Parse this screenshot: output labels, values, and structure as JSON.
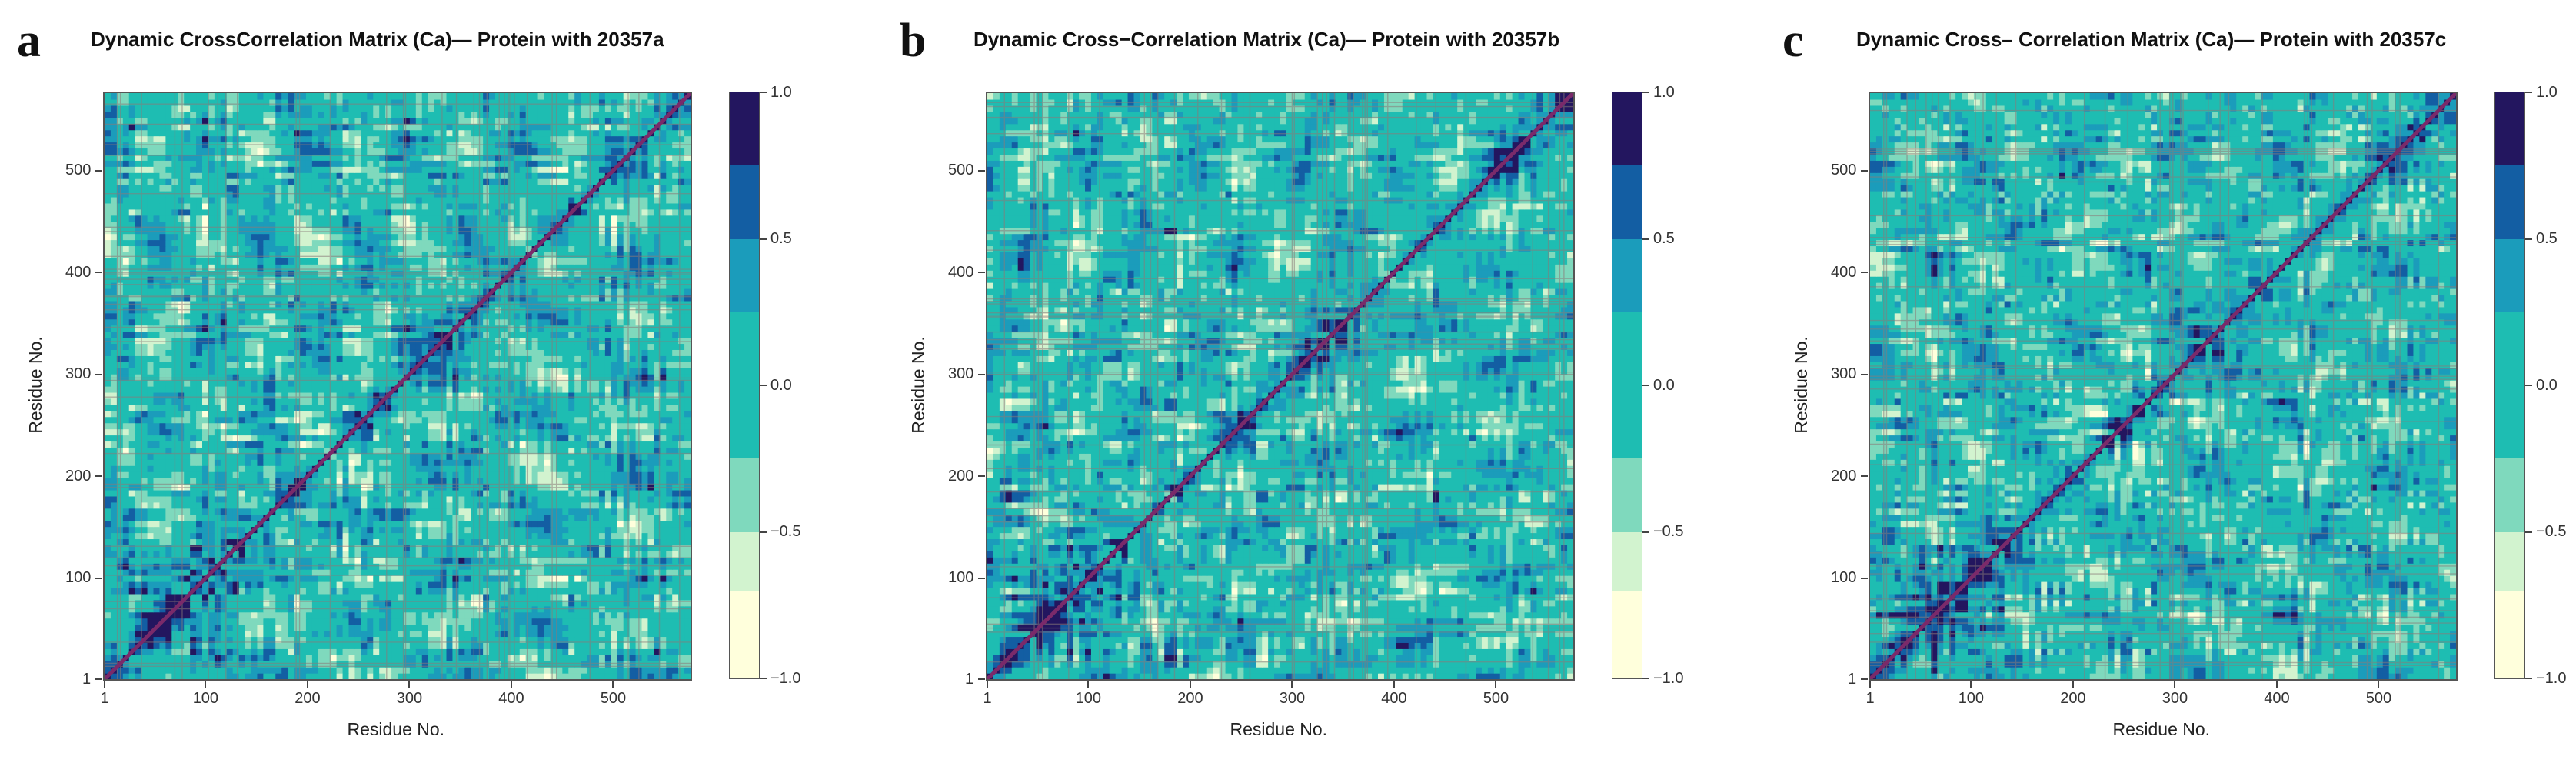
{
  "panels": [
    {
      "letter": "a",
      "title": "Dynamic CrossCorrelation Matrix (Ca)— Protein with 20357a",
      "seed": 11
    },
    {
      "letter": "b",
      "title": "Dynamic Cross−Correlation Matrix (Ca)— Protein with 20357b",
      "seed": 29
    },
    {
      "letter": "c",
      "title": "Dynamic Cross–  Correlation Matrix (Ca)— Protein with 20357c",
      "seed": 47
    }
  ],
  "colors": {
    "bands": [
      "#ffffdc",
      "#d2f3cf",
      "#7fd9bd",
      "#1ebdb2",
      "#1b9cbb",
      "#135ea3",
      "#23165f"
    ],
    "contour": "#8a7a78",
    "diagonal": "#7a2a6a"
  },
  "chart_data": [
    {
      "type": "heatmap",
      "title": "Dynamic CrossCorrelation Matrix (Ca)— Protein with 20357a",
      "xlabel": "Residue No.",
      "ylabel": "Residue No.",
      "x_ticks": [
        "1",
        "100",
        "200",
        "300",
        "400",
        "500"
      ],
      "y_ticks": [
        "1",
        "100",
        "200",
        "300",
        "400",
        "500"
      ],
      "x_range": [
        1,
        576
      ],
      "y_range": [
        1,
        576
      ],
      "colorbar_ticks": [
        "1.0",
        "0.5",
        "0.0",
        "−0.5",
        "−1.0"
      ],
      "value_range": [
        -1.0,
        1.0
      ],
      "band_edges": [
        -1.0,
        -0.7,
        -0.5,
        -0.25,
        0.25,
        0.5,
        0.75,
        1.0
      ]
    },
    {
      "type": "heatmap",
      "title": "Dynamic Cross−Correlation Matrix (Ca)— Protein with 20357b",
      "xlabel": "Residue No.",
      "ylabel": "Residue No.",
      "x_ticks": [
        "1",
        "100",
        "200",
        "300",
        "400",
        "500"
      ],
      "y_ticks": [
        "1",
        "100",
        "200",
        "300",
        "400",
        "500"
      ],
      "x_range": [
        1,
        576
      ],
      "y_range": [
        1,
        576
      ],
      "colorbar_ticks": [
        "1.0",
        "0.5",
        "0.0",
        "−0.5",
        "−1.0"
      ],
      "value_range": [
        -1.0,
        1.0
      ],
      "band_edges": [
        -1.0,
        -0.7,
        -0.5,
        -0.25,
        0.25,
        0.5,
        0.75,
        1.0
      ]
    },
    {
      "type": "heatmap",
      "title": "Dynamic Cross–  Correlation Matrix (Ca)— Protein with 20357c",
      "xlabel": "Residue No.",
      "ylabel": "Residue No.",
      "x_ticks": [
        "1",
        "100",
        "200",
        "300",
        "400",
        "500"
      ],
      "y_ticks": [
        "1",
        "100",
        "200",
        "300",
        "400",
        "500"
      ],
      "x_range": [
        1,
        576
      ],
      "y_range": [
        1,
        576
      ],
      "colorbar_ticks": [
        "1.0",
        "0.5",
        "0.0",
        "−0.5",
        "−1.0"
      ],
      "value_range": [
        -1.0,
        1.0
      ],
      "band_edges": [
        -1.0,
        -0.7,
        -0.5,
        -0.25,
        0.25,
        0.5,
        0.75,
        1.0
      ]
    }
  ]
}
